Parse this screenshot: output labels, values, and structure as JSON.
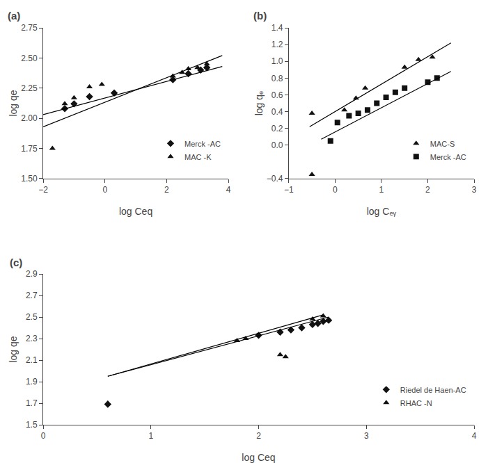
{
  "chart_data": [
    {
      "type": "scatter",
      "title": "(a)",
      "x_label": "log Ceq",
      "y_label": "log qe",
      "xlim": [
        -2,
        4
      ],
      "ylim": [
        1.5,
        2.75
      ],
      "xticks": [
        -2,
        0,
        2,
        4
      ],
      "yticks": [
        {
          "value": 1.5,
          "label": "1.50"
        },
        1.75,
        {
          "value": 2.0,
          "label": "2.00"
        },
        2.25,
        {
          "value": 2.5,
          "label": "2.50"
        },
        2.75
      ],
      "grid": false,
      "legend": "lower right",
      "series": [
        {
          "name": "Merck -AC",
          "type": "scatter",
          "marker": "diamond",
          "color": "#111111",
          "x": [
            -1.3,
            -1.0,
            -0.5,
            0.3,
            2.2,
            2.7,
            3.1,
            3.3
          ],
          "values": [
            2.08,
            2.12,
            2.18,
            2.21,
            2.32,
            2.37,
            2.4,
            2.42
          ]
        },
        {
          "name": "MAC -K",
          "type": "scatter",
          "marker": "triangle-up",
          "color": "#111111",
          "x": [
            -1.7,
            -1.3,
            -1.0,
            -0.5,
            -0.1,
            2.2,
            2.5,
            2.7,
            3.0,
            3.3
          ],
          "values": [
            1.75,
            2.12,
            2.17,
            2.26,
            2.28,
            2.35,
            2.38,
            2.41,
            2.42,
            2.45
          ]
        },
        {
          "type": "line",
          "line_style": "solid",
          "color": "#000000",
          "x": [
            -2.0,
            3.8
          ],
          "values": [
            2.03,
            2.43
          ]
        },
        {
          "type": "line",
          "line_style": "solid",
          "color": "#000000",
          "x": [
            -2.0,
            3.8
          ],
          "values": [
            1.93,
            2.52
          ]
        }
      ]
    },
    {
      "type": "scatter",
      "title": "(b)",
      "x_label": "log Cₑᵧ",
      "y_label": "log qₑ",
      "xlim": [
        -1,
        3
      ],
      "ylim": [
        -0.4,
        1.4
      ],
      "xticks": [
        -1,
        0,
        1,
        2,
        3
      ],
      "yticks": [
        -0.4,
        {
          "value": 0.0,
          "label": "0.0"
        },
        0.2,
        0.4,
        0.6,
        0.8,
        {
          "value": 1.0,
          "label": "1.0"
        },
        1.2,
        1.4
      ],
      "grid": false,
      "legend": "lower right",
      "series": [
        {
          "name": "MAC-S",
          "type": "scatter",
          "marker": "triangle-up",
          "color": "#111111",
          "x": [
            -0.5,
            0.2,
            0.45,
            0.65,
            1.5,
            1.8,
            2.1
          ],
          "values": [
            0.38,
            0.42,
            0.56,
            0.68,
            0.93,
            1.02,
            1.05
          ]
        },
        {
          "name": "Merck -AC",
          "type": "scatter",
          "marker": "square",
          "color": "#111111",
          "x": [
            -0.1,
            0.05,
            0.3,
            0.5,
            0.7,
            0.9,
            1.1,
            1.3,
            1.5,
            2.0,
            2.2
          ],
          "values": [
            0.05,
            0.27,
            0.35,
            0.38,
            0.42,
            0.5,
            0.57,
            0.63,
            0.68,
            0.75,
            0.8
          ]
        },
        {
          "type": "line",
          "line_style": "solid",
          "color": "#000000",
          "x": [
            -0.55,
            2.5
          ],
          "values": [
            0.22,
            1.22
          ]
        },
        {
          "type": "line",
          "line_style": "solid",
          "color": "#000000",
          "x": [
            -0.3,
            2.5
          ],
          "values": [
            0.07,
            0.88
          ]
        },
        {
          "type": "scatter",
          "marker": "triangle-up",
          "color": "#111111",
          "x": [
            -0.5
          ],
          "values": [
            -0.35
          ]
        }
      ]
    },
    {
      "type": "scatter",
      "title": "(c)",
      "x_label": "log Ceq",
      "y_label": "log qe",
      "xlim": [
        0,
        4
      ],
      "ylim": [
        1.5,
        2.9
      ],
      "xticks": [
        0,
        1,
        2,
        3,
        4
      ],
      "yticks": [
        1.5,
        1.7,
        1.9,
        2.1,
        2.3,
        2.5,
        2.7,
        2.9
      ],
      "grid": false,
      "legend": "lower right",
      "series": [
        {
          "name": "Riedel de Haen-AC",
          "type": "scatter",
          "marker": "diamond",
          "color": "#111111",
          "x": [
            0.6,
            2.0,
            2.2,
            2.3,
            2.4,
            2.5,
            2.55,
            2.6,
            2.65
          ],
          "values": [
            1.69,
            2.33,
            2.36,
            2.38,
            2.4,
            2.43,
            2.44,
            2.46,
            2.47
          ]
        },
        {
          "name": "RHAC -N",
          "type": "scatter",
          "marker": "triangle-up",
          "color": "#111111",
          "x": [
            0.6,
            1.8,
            1.88,
            2.2,
            2.25,
            2.5,
            2.6
          ],
          "values": [
            1.7,
            2.28,
            2.3,
            2.15,
            2.13,
            2.48,
            2.51
          ]
        },
        {
          "type": "line",
          "line_style": "solid",
          "color": "#000000",
          "x": [
            0.6,
            2.65
          ],
          "values": [
            1.95,
            2.5
          ]
        },
        {
          "type": "line",
          "line_style": "solid",
          "color": "#000000",
          "x": [
            0.6,
            2.6
          ],
          "values": [
            1.95,
            2.52
          ]
        }
      ]
    }
  ]
}
